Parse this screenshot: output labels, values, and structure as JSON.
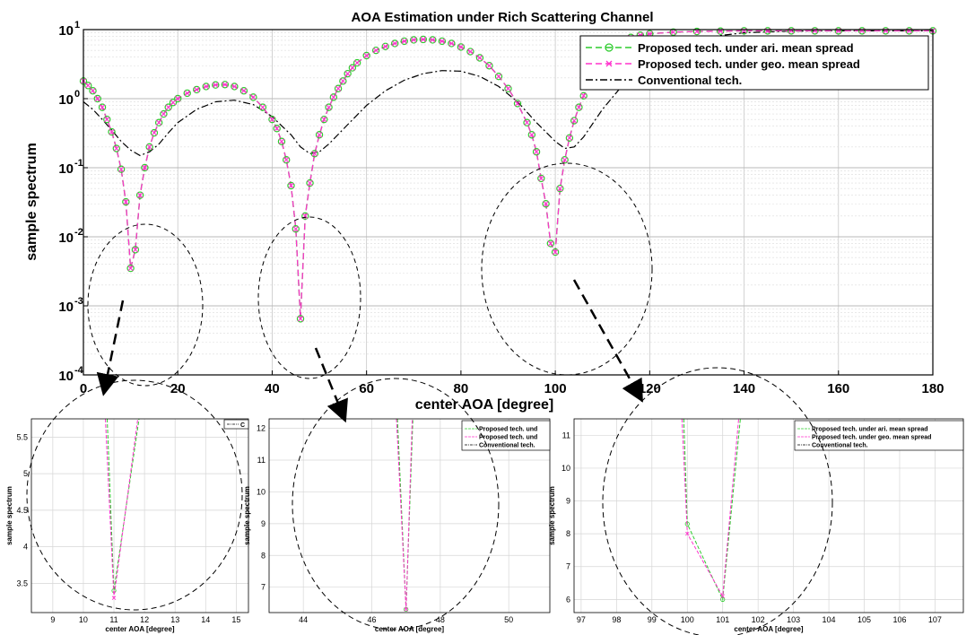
{
  "chart_data": [
    {
      "id": "main",
      "type": "line",
      "title": "AOA Estimation under Rich Scattering Channel",
      "xlabel": "center AOA [degree]",
      "ylabel": "sample spectrum",
      "xlim": [
        0,
        180
      ],
      "ylim": [
        0.0001,
        10
      ],
      "yscale": "log",
      "grid": true,
      "legend_position": "top-right",
      "x_ticks": [
        0,
        20,
        40,
        60,
        80,
        100,
        120,
        140,
        160,
        180
      ],
      "y_ticks": [
        {
          "value": 0.0001,
          "base": "10",
          "exp": "-4"
        },
        {
          "value": 0.001,
          "base": "10",
          "exp": "-3"
        },
        {
          "value": 0.01,
          "base": "10",
          "exp": "-2"
        },
        {
          "value": 0.1,
          "base": "10",
          "exp": "-1"
        },
        {
          "value": 1,
          "base": "10",
          "exp": "0"
        },
        {
          "value": 10,
          "base": "10",
          "exp": "1"
        }
      ],
      "series": [
        {
          "name": "Proposed tech. under ari. mean spread",
          "color": "#2ecc2e",
          "marker": "circle",
          "line": "dashed",
          "x": [
            0,
            1,
            2,
            3,
            4,
            5,
            6,
            7,
            8,
            9,
            10,
            11,
            12,
            13,
            14,
            15,
            16,
            17,
            18,
            19,
            20,
            22,
            24,
            26,
            28,
            30,
            32,
            34,
            36,
            38,
            40,
            41,
            42,
            43,
            44,
            45,
            46,
            47,
            48,
            49,
            50,
            51,
            52,
            53,
            54,
            55,
            56,
            57,
            58,
            60,
            62,
            64,
            66,
            68,
            70,
            72,
            74,
            76,
            78,
            80,
            82,
            84,
            86,
            88,
            90,
            92,
            94,
            95,
            96,
            97,
            98,
            99,
            100,
            101,
            102,
            103,
            104,
            105,
            106,
            107,
            108,
            109,
            110,
            112,
            114,
            116,
            118,
            120,
            125,
            130,
            135,
            140,
            145,
            150,
            155,
            160,
            165,
            170,
            175,
            180
          ],
          "y": [
            1.8,
            1.55,
            1.3,
            1.0,
            0.75,
            0.5,
            0.33,
            0.19,
            0.095,
            0.032,
            0.0035,
            0.0065,
            0.04,
            0.1,
            0.2,
            0.32,
            0.45,
            0.6,
            0.75,
            0.88,
            1.0,
            1.2,
            1.35,
            1.5,
            1.58,
            1.6,
            1.5,
            1.3,
            1.05,
            0.75,
            0.5,
            0.37,
            0.24,
            0.13,
            0.055,
            0.013,
            0.00065,
            0.02,
            0.06,
            0.16,
            0.3,
            0.5,
            0.75,
            1.05,
            1.4,
            1.8,
            2.3,
            2.8,
            3.3,
            4.2,
            5.0,
            5.7,
            6.3,
            6.8,
            7.1,
            7.2,
            7.1,
            6.8,
            6.3,
            5.6,
            4.8,
            3.9,
            3.0,
            2.1,
            1.4,
            0.85,
            0.45,
            0.3,
            0.17,
            0.07,
            0.03,
            0.008,
            0.006,
            0.05,
            0.13,
            0.27,
            0.48,
            0.75,
            1.1,
            1.6,
            2.2,
            3.0,
            4.0,
            5.5,
            6.8,
            7.7,
            8.3,
            8.7,
            9.2,
            9.4,
            9.5,
            9.6,
            9.6,
            9.6,
            9.6,
            9.6,
            9.6,
            9.6,
            9.6,
            9.6
          ]
        },
        {
          "name": "Proposed tech. under geo. mean spread",
          "color": "#ff33cc",
          "marker": "x",
          "line": "dashed"
        },
        {
          "name": "Conventional tech.",
          "color": "#000000",
          "marker": "none",
          "line": "dashdot",
          "x": [
            0,
            2,
            4,
            6,
            8,
            10,
            12,
            14,
            16,
            18,
            20,
            24,
            28,
            32,
            36,
            40,
            44,
            46,
            48,
            50,
            52,
            56,
            60,
            64,
            68,
            72,
            76,
            80,
            84,
            88,
            92,
            96,
            100,
            102,
            104,
            106,
            110,
            115,
            120,
            125,
            130,
            140,
            150,
            160,
            170,
            180
          ],
          "y": [
            0.9,
            0.7,
            0.5,
            0.35,
            0.24,
            0.18,
            0.15,
            0.17,
            0.22,
            0.32,
            0.45,
            0.7,
            0.9,
            0.95,
            0.82,
            0.55,
            0.3,
            0.2,
            0.16,
            0.17,
            0.22,
            0.42,
            0.8,
            1.3,
            1.85,
            2.3,
            2.55,
            2.5,
            2.1,
            1.5,
            0.9,
            0.45,
            0.24,
            0.19,
            0.2,
            0.28,
            0.7,
            1.8,
            3.8,
            5.8,
            7.5,
            9.0,
            9.5,
            9.6,
            9.6,
            9.6
          ]
        }
      ]
    },
    {
      "id": "zoom1",
      "type": "line",
      "xlabel": "center AOA [degree]",
      "ylabel": "sample spectrum",
      "xlim": [
        8.3,
        15.4
      ],
      "ylim": [
        3.1,
        5.75
      ],
      "x_ticks": [
        9,
        10,
        11,
        12,
        13,
        14,
        15
      ],
      "y_ticks": [
        3.5,
        4,
        4.5,
        5,
        5.5
      ],
      "grid": true,
      "legend_fragment": "C",
      "series": [
        {
          "name": "ari",
          "color": "#2ecc2e",
          "x": [
            10.78,
            11.0,
            11.82
          ],
          "y": [
            5.75,
            3.4,
            5.75
          ]
        },
        {
          "name": "geo",
          "color": "#ff33cc",
          "x": [
            10.72,
            11.0,
            11.78
          ],
          "y": [
            5.75,
            3.3,
            5.75
          ]
        }
      ]
    },
    {
      "id": "zoom2",
      "type": "line",
      "xlabel": "center AOA [degree]",
      "ylabel": "sample spectrum",
      "xlim": [
        43,
        51.2
      ],
      "ylim": [
        6.2,
        12.3
      ],
      "x_ticks": [
        44,
        46,
        48,
        50
      ],
      "y_ticks": [
        7,
        8,
        9,
        10,
        11,
        12
      ],
      "grid": true,
      "legend_position": "top-right",
      "legend": [
        "Proposed tech. und",
        "Proposed tech. und",
        "Conventional tech."
      ],
      "series": [
        {
          "name": "ari",
          "color": "#2ecc2e",
          "x": [
            46.75,
            47.0,
            47.2
          ],
          "y": [
            12.3,
            6.3,
            12.3
          ]
        },
        {
          "name": "geo",
          "color": "#ff33cc",
          "x": [
            46.72,
            47.0,
            47.18
          ],
          "y": [
            12.3,
            6.3,
            12.3
          ]
        }
      ]
    },
    {
      "id": "zoom3",
      "type": "line",
      "xlabel": "center AOA [degree]",
      "ylabel": "sample spectrum",
      "xlim": [
        96.8,
        107.8
      ],
      "ylim": [
        5.6,
        11.5
      ],
      "x_ticks": [
        97,
        98,
        99,
        100,
        101,
        102,
        103,
        104,
        105,
        106,
        107
      ],
      "y_ticks": [
        6,
        7,
        8,
        9,
        10,
        11
      ],
      "grid": true,
      "legend_position": "top-right",
      "legend": [
        "Proposed tech. under ari. mean spread",
        "Proposed tech. under geo. mean spread",
        "Conventional tech."
      ],
      "series": [
        {
          "name": "ari",
          "color": "#2ecc2e",
          "x": [
            99.9,
            100.0,
            101.0,
            101.5
          ],
          "y": [
            11.5,
            8.3,
            6.0,
            11.5
          ]
        },
        {
          "name": "geo",
          "color": "#ff33cc",
          "x": [
            99.85,
            100.0,
            101.0,
            101.45
          ],
          "y": [
            11.5,
            8.0,
            6.1,
            11.5
          ]
        }
      ]
    }
  ]
}
